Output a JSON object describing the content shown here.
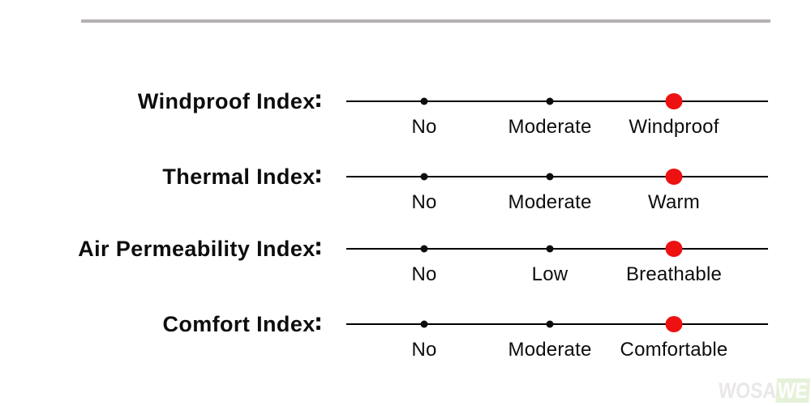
{
  "colors": {
    "accent_red": "#ee1111",
    "text_black": "#0d0d0d",
    "scale_line": "#000000",
    "divider_gray": "#b6b1b4",
    "watermark_gray": "#eae7e9",
    "watermark_green_bg": "#e6f1da"
  },
  "watermark": {
    "part1": "WOSA",
    "part2": "WE"
  },
  "rows": [
    {
      "label": "Windproof Index∶",
      "ticks": [
        {
          "label": "No",
          "active": false
        },
        {
          "label": "Moderate",
          "active": false
        },
        {
          "label": "Windproof",
          "active": true
        }
      ]
    },
    {
      "label": "Thermal Index∶",
      "ticks": [
        {
          "label": "No",
          "active": false
        },
        {
          "label": "Moderate",
          "active": false
        },
        {
          "label": "Warm",
          "active": true
        }
      ]
    },
    {
      "label": "Air Permeability Index∶",
      "ticks": [
        {
          "label": "No",
          "active": false
        },
        {
          "label": "Low",
          "active": false
        },
        {
          "label": "Breathable",
          "active": true
        }
      ]
    },
    {
      "label": "Comfort Index∶",
      "ticks": [
        {
          "label": "No",
          "active": false
        },
        {
          "label": "Moderate",
          "active": false
        },
        {
          "label": "Comfortable",
          "active": true
        }
      ]
    }
  ],
  "chart_data": {
    "type": "table",
    "title": "",
    "rows": [
      {
        "label": "Windproof Index",
        "scale": [
          "No",
          "Moderate",
          "Windproof"
        ],
        "selected": "Windproof",
        "selected_level": 3,
        "levels": 3
      },
      {
        "label": "Thermal Index",
        "scale": [
          "No",
          "Moderate",
          "Warm"
        ],
        "selected": "Warm",
        "selected_level": 3,
        "levels": 3
      },
      {
        "label": "Air Permeability Index",
        "scale": [
          "No",
          "Low",
          "Breathable"
        ],
        "selected": "Breathable",
        "selected_level": 3,
        "levels": 3
      },
      {
        "label": "Comfort Index",
        "scale": [
          "No",
          "Moderate",
          "Comfortable"
        ],
        "selected": "Comfortable",
        "selected_level": 3,
        "levels": 3
      }
    ],
    "layout": {
      "marker": "red-dot-on-selected-level",
      "grid": false,
      "legend": false
    }
  }
}
